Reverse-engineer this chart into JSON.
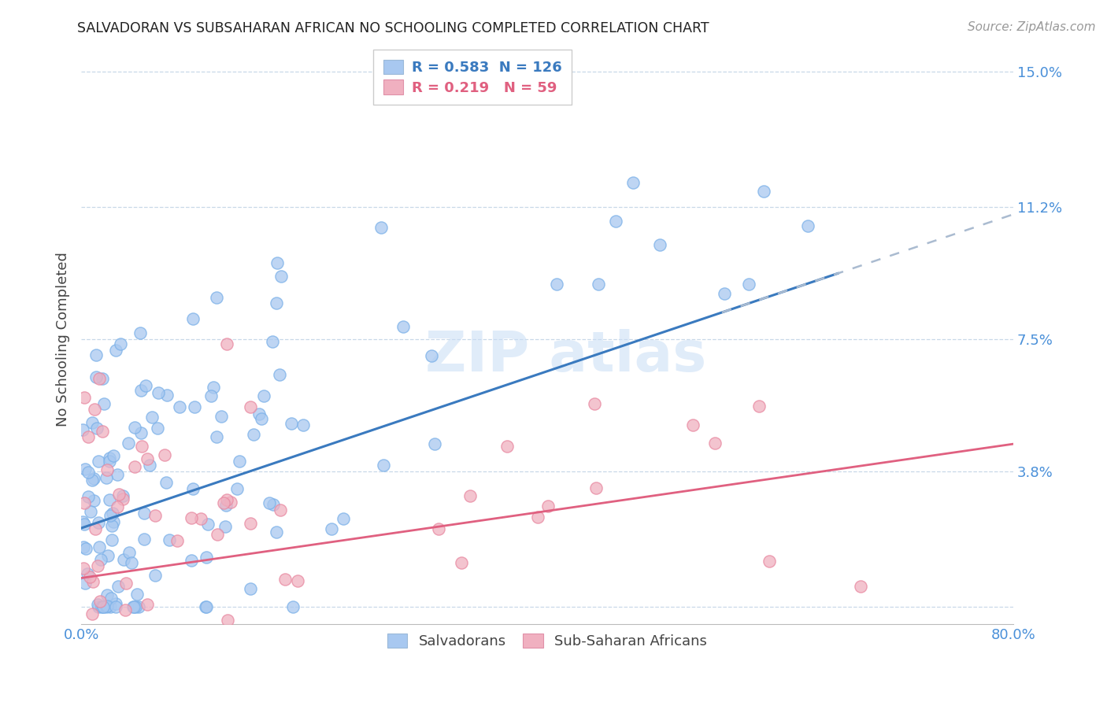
{
  "title": "SALVADORAN VS SUBSAHARAN AFRICAN NO SCHOOLING COMPLETED CORRELATION CHART",
  "source": "Source: ZipAtlas.com",
  "ylabel": "No Schooling Completed",
  "xlim": [
    0.0,
    0.8
  ],
  "ylim": [
    -0.005,
    0.155
  ],
  "ytick_vals": [
    0.0,
    0.038,
    0.075,
    0.112,
    0.15
  ],
  "ytick_labels": [
    "",
    "3.8%",
    "7.5%",
    "11.2%",
    "15.0%"
  ],
  "salvadoran_color": "#a8c8f0",
  "salvadoran_edge": "#7ab0e8",
  "subsaharan_color": "#f0b0c0",
  "subsaharan_edge": "#e888a0",
  "regression_blue_color": "#3a7abf",
  "regression_pink_color": "#e06080",
  "regression_dashed_color": "#aabbd0",
  "R_salv": 0.583,
  "N_salv": 126,
  "R_sub": 0.219,
  "N_sub": 59,
  "background_color": "#ffffff",
  "grid_color": "#c8d8e8",
  "right_tick_color": "#4a90d9"
}
